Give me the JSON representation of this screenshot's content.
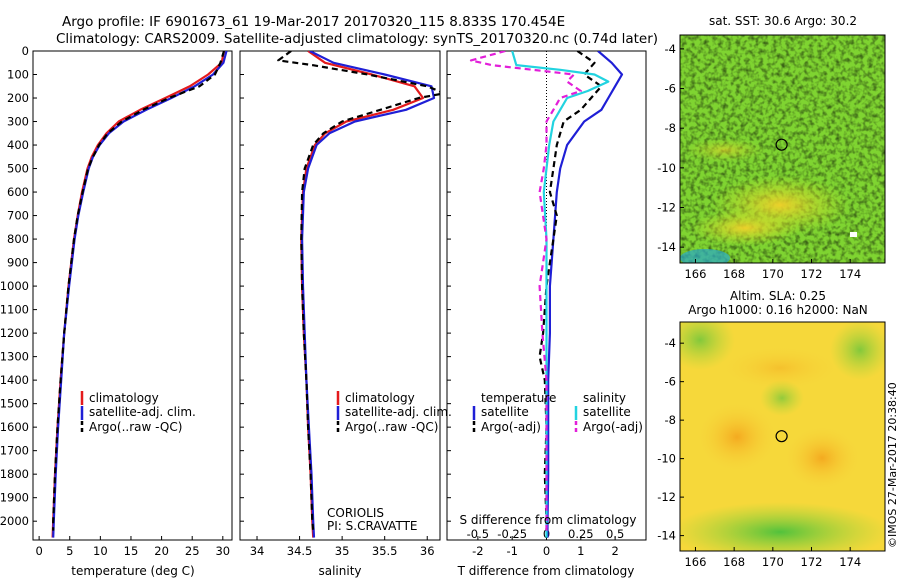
{
  "header": {
    "line1": "Argo profile: IF 6901673_61 19-Mar-2017 20170320_115 8.833S 170.454E",
    "line2": "Climatology: CARS2009. Satellite-adjusted climatology: synTS_20170320.nc (0.74d later)"
  },
  "footer": {
    "stamp": "©IMOS 27-Mar-2017 20:38:40",
    "coriolis": "CORIOLIS",
    "pi": "PI: S.CRAVATTE"
  },
  "colors": {
    "climatology": "#e41a1c",
    "satellite": "#1f1fd6",
    "argo": "#000000",
    "sal_satellite": "#22d3e0",
    "sal_argo": "#e21fd9"
  },
  "chart_data": [
    {
      "id": "temp",
      "type": "line",
      "xlabel": "temperature (deg C)",
      "ylabel": "",
      "xlim": [
        -1,
        31.5
      ],
      "ylim": [
        2080,
        0
      ],
      "xticks": [
        0,
        5,
        10,
        15,
        20,
        25,
        30
      ],
      "yticks": [
        0,
        100,
        200,
        300,
        400,
        500,
        600,
        700,
        800,
        900,
        1000,
        1100,
        1200,
        1300,
        1400,
        1500,
        1600,
        1700,
        1800,
        1900,
        2000
      ],
      "legend": [
        "climatology",
        "satellite-adj. clim.",
        "Argo(..raw -QC)"
      ],
      "series": [
        {
          "name": "climatology",
          "color": "#e41a1c",
          "dash": "",
          "depth": [
            0,
            50,
            100,
            150,
            200,
            250,
            300,
            350,
            400,
            450,
            500,
            600,
            700,
            800,
            1000,
            1200,
            1400,
            1600,
            1800,
            2000,
            2070
          ],
          "values": [
            30.2,
            29.8,
            27.6,
            24.6,
            20.6,
            16.5,
            13.0,
            11.0,
            9.6,
            8.6,
            7.9,
            7.0,
            6.3,
            5.7,
            4.8,
            4.1,
            3.5,
            3.0,
            2.6,
            2.3,
            2.2
          ]
        },
        {
          "name": "satellite-adj. clim.",
          "color": "#1f1fd6",
          "dash": "",
          "depth": [
            0,
            50,
            100,
            150,
            200,
            250,
            300,
            350,
            400,
            450,
            500,
            600,
            700,
            800,
            1000,
            1200,
            1400,
            1600,
            1800,
            2000,
            2070
          ],
          "values": [
            30.6,
            30.1,
            28.4,
            25.4,
            21.6,
            17.5,
            13.8,
            11.4,
            9.9,
            8.8,
            8.1,
            7.2,
            6.4,
            5.8,
            4.9,
            4.1,
            3.6,
            3.1,
            2.7,
            2.4,
            2.3
          ]
        },
        {
          "name": "Argo(..raw -QC)",
          "color": "#000000",
          "dash": "6,4",
          "depth": [
            0,
            50,
            100,
            150,
            200,
            250,
            300,
            350,
            400,
            450,
            500,
            600,
            700,
            800,
            1000,
            1200,
            1400,
            1600,
            1800,
            2000,
            2040
          ],
          "values": [
            30.2,
            29.6,
            28.7,
            26.2,
            21.2,
            17.0,
            13.5,
            11.2,
            9.8,
            8.8,
            8.0,
            7.1,
            6.3,
            5.7,
            4.8,
            4.1,
            3.5,
            3.0,
            2.6,
            2.3,
            2.3
          ]
        }
      ]
    },
    {
      "id": "sal",
      "type": "line",
      "xlabel": "salinity",
      "ylabel": "",
      "xlim": [
        33.8,
        36.15
      ],
      "ylim": [
        2080,
        0
      ],
      "xticks": [
        34,
        34.5,
        35,
        35.5,
        36
      ],
      "legend": [
        "climatology",
        "satellite-adj. clim.",
        "Argo(..raw -QC)"
      ],
      "series": [
        {
          "name": "climatology",
          "color": "#e41a1c",
          "dash": "",
          "depth": [
            0,
            50,
            100,
            150,
            200,
            250,
            300,
            350,
            400,
            500,
            600,
            800,
            1000,
            1200,
            1400,
            1600,
            1800,
            2000,
            2070
          ],
          "values": [
            34.6,
            34.8,
            35.35,
            35.85,
            35.95,
            35.6,
            35.05,
            34.8,
            34.68,
            34.58,
            34.54,
            34.52,
            34.53,
            34.55,
            34.58,
            34.6,
            34.63,
            34.65,
            34.66
          ]
        },
        {
          "name": "satellite-adj. clim.",
          "color": "#1f1fd6",
          "dash": "",
          "depth": [
            0,
            50,
            100,
            150,
            200,
            250,
            300,
            350,
            400,
            500,
            600,
            800,
            1000,
            1200,
            1400,
            1600,
            1800,
            2000,
            2070
          ],
          "values": [
            34.62,
            34.9,
            35.5,
            36.05,
            36.08,
            35.75,
            35.15,
            34.85,
            34.7,
            34.6,
            34.55,
            34.53,
            34.54,
            34.56,
            34.58,
            34.61,
            34.64,
            34.66,
            34.67
          ]
        },
        {
          "name": "Argo(..raw -QC)",
          "color": "#000000",
          "dash": "6,4",
          "depth": [
            0,
            40,
            60,
            100,
            150,
            180,
            200,
            250,
            300,
            350,
            400,
            500,
            600,
            800,
            1000,
            1200,
            1400,
            1600,
            1800,
            2000,
            2040
          ],
          "values": [
            34.4,
            34.25,
            34.65,
            35.3,
            36.0,
            36.2,
            35.9,
            35.45,
            35.0,
            34.78,
            34.66,
            34.56,
            34.53,
            34.52,
            34.53,
            34.55,
            34.58,
            34.6,
            34.63,
            34.65,
            34.66
          ]
        }
      ]
    },
    {
      "id": "diff",
      "type": "line",
      "xlabel": "T difference from climatology",
      "x2label": "S difference from climatology",
      "xlim": [
        -2.9,
        2.9
      ],
      "ylim": [
        2080,
        0
      ],
      "xticks": [
        -2,
        -1,
        0,
        1,
        2
      ],
      "x2ticks": [
        -0.5,
        -0.25,
        0,
        0.25,
        0.5
      ],
      "legend_t_title": "temperature",
      "legend_s_title": "salinity",
      "legend": [
        "satellite",
        "Argo(-adj)",
        "satellite",
        "Argo(-adj)"
      ],
      "series": [
        {
          "name": "satellite",
          "group": "temperature",
          "color": "#1f1fd6",
          "dash": "",
          "depth": [
            0,
            50,
            100,
            150,
            200,
            250,
            300,
            400,
            500,
            600,
            800,
            1000,
            1200,
            1400,
            1600,
            1800,
            2000,
            2070
          ],
          "values": [
            1.5,
            1.9,
            2.2,
            2.0,
            1.8,
            1.6,
            1.1,
            0.6,
            0.4,
            0.3,
            0.2,
            0.1,
            0.1,
            0.05,
            0.05,
            0.05,
            0.03,
            0.03
          ]
        },
        {
          "name": "Argo(-adj)",
          "group": "temperature",
          "color": "#000000",
          "dash": "6,4",
          "depth": [
            0,
            50,
            100,
            150,
            200,
            250,
            300,
            400,
            500,
            600,
            700,
            800,
            900,
            1000,
            1100,
            1200,
            1300,
            1400,
            1600,
            1800,
            2000,
            2040
          ],
          "values": [
            0.9,
            1.4,
            1.1,
            1.6,
            1.3,
            1.0,
            0.5,
            0.3,
            0.2,
            0.1,
            0.3,
            0.2,
            0.1,
            0.0,
            -0.05,
            -0.1,
            -0.2,
            -0.05,
            0.0,
            -0.05,
            0.0,
            0.0
          ]
        },
        {
          "name": "satellite",
          "group": "salinity",
          "color": "#22d3e0",
          "dash": "",
          "depth": [
            0,
            60,
            80,
            100,
            130,
            170,
            200,
            250,
            300,
            400,
            500,
            600,
            800,
            1000,
            1200,
            1400,
            1600,
            1800,
            2000,
            2070
          ],
          "values": [
            -0.25,
            -0.22,
            0.1,
            0.35,
            0.45,
            0.3,
            0.15,
            0.1,
            0.05,
            0.02,
            0.0,
            -0.02,
            0.0,
            0.0,
            0.0,
            0.0,
            0.0,
            0.0,
            0.0,
            0.0
          ]
        },
        {
          "name": "Argo(-adj)",
          "group": "salinity",
          "color": "#e21fd9",
          "dash": "6,4",
          "depth": [
            0,
            40,
            60,
            80,
            100,
            130,
            170,
            200,
            250,
            300,
            400,
            500,
            600,
            800,
            1000,
            1200,
            1400,
            1600,
            1800,
            2000,
            2040
          ],
          "values": [
            -0.3,
            -0.55,
            -0.4,
            -0.1,
            0.2,
            0.15,
            0.25,
            0.1,
            0.05,
            0.0,
            0.0,
            -0.02,
            -0.05,
            0.0,
            -0.05,
            -0.03,
            0.0,
            0.0,
            0.0,
            0.0,
            0.0
          ]
        }
      ]
    },
    {
      "id": "sst_map",
      "type": "heatmap",
      "title": "sat. SST: 30.6 Argo: 30.2",
      "xlim": [
        165.2,
        175.8
      ],
      "ylim": [
        -14.8,
        -3.3
      ],
      "xticks": [
        166,
        168,
        170,
        172,
        174
      ],
      "yticks": [
        -4,
        -6,
        -8,
        -10,
        -12,
        -14
      ],
      "argo_position": {
        "lon": 170.454,
        "lat": -8.833
      }
    },
    {
      "id": "sla_map",
      "type": "heatmap",
      "title": "Altim. SLA: 0.25",
      "subtitle": "Argo h1000: 0.16 h2000: NaN",
      "xlim": [
        165.2,
        175.8
      ],
      "ylim": [
        -14.8,
        -2.9
      ],
      "xticks": [
        166,
        168,
        170,
        172,
        174
      ],
      "yticks": [
        -4,
        -6,
        -8,
        -10,
        -12,
        -14
      ],
      "argo_position": {
        "lon": 170.454,
        "lat": -8.833
      }
    }
  ]
}
